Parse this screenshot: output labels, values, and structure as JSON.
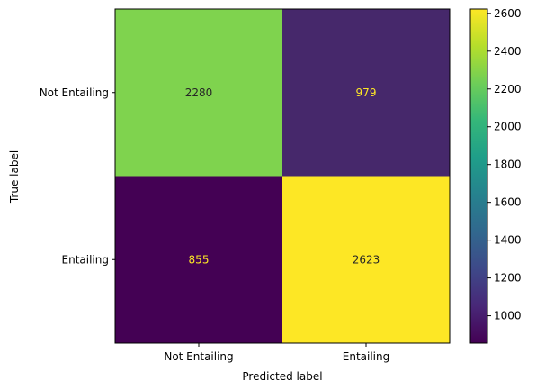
{
  "chart_data": {
    "type": "heatmap",
    "title": "",
    "xlabel": "Predicted label",
    "ylabel": "True label",
    "x_categories": [
      "Not Entailing",
      "Entailing"
    ],
    "y_categories": [
      "Not Entailing",
      "Entailing"
    ],
    "values": [
      [
        2280,
        979
      ],
      [
        855,
        2623
      ]
    ],
    "colormap": "viridis",
    "color_range": [
      855,
      2623
    ],
    "colorbar_ticks": [
      1000,
      1200,
      1400,
      1600,
      1800,
      2000,
      2200,
      2400,
      2600
    ],
    "grid": false,
    "colors": {
      "cell_2280": "#7fd34e",
      "cell_979": "#46286b",
      "cell_855": "#440154",
      "cell_2623": "#fde725",
      "text_on_light": "#262626",
      "text_on_dark": "#fde725"
    }
  }
}
